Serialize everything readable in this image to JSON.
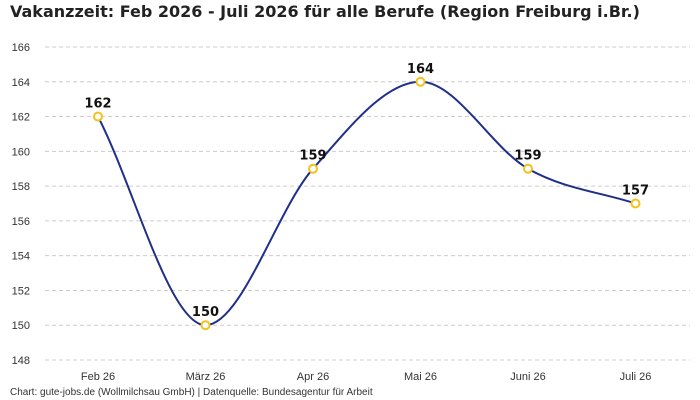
{
  "colors": {
    "line": "#1f2f8a",
    "marker_stroke": "#f2c21b",
    "marker_fill": "#ffffff",
    "grid": "#cccccc"
  },
  "chart_data": {
    "type": "line",
    "title": "Vakanzzeit: Feb 2026 - Juli 2026 für alle Berufe (Region Freiburg i.Br.)",
    "xlabel": "",
    "ylabel": "",
    "categories": [
      "Feb 26",
      "März 26",
      "Apr 26",
      "Mai 26",
      "Juni 26",
      "Juli 26"
    ],
    "series": [
      {
        "values": [
          162,
          150,
          159,
          164,
          159,
          157
        ]
      }
    ],
    "data_labels": [
      "162",
      "150",
      "159",
      "164",
      "159",
      "157"
    ],
    "yticks": [
      "148",
      "150",
      "152",
      "154",
      "156",
      "158",
      "160",
      "162",
      "164",
      "166"
    ],
    "ylim": [
      148,
      166
    ],
    "grid": true,
    "legend": "none",
    "source": "Chart: gute-jobs.de (Wollmilchsau GmbH) | Datenquelle: Bundesagentur für Arbeit"
  }
}
